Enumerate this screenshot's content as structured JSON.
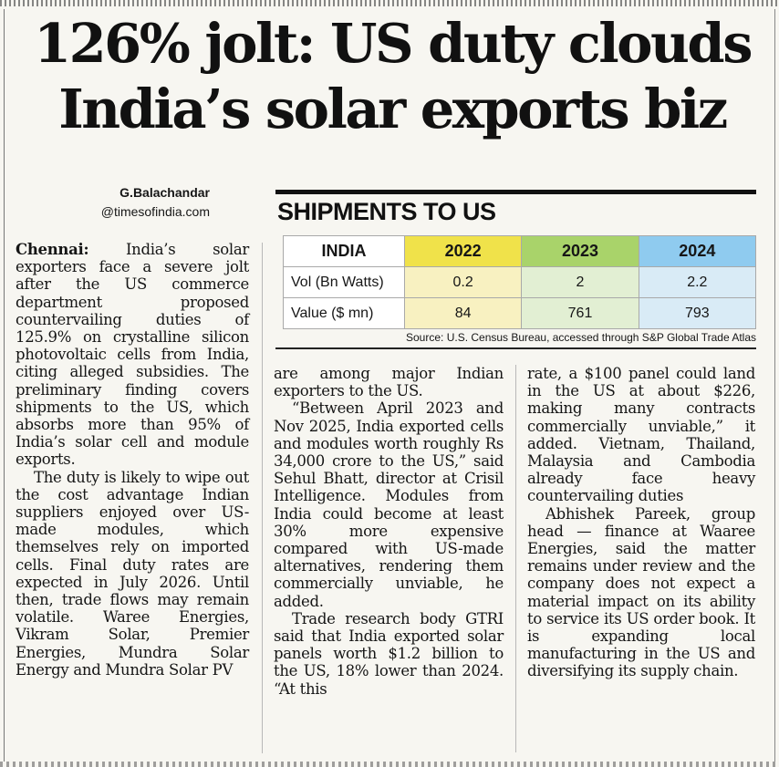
{
  "headline": {
    "line1": "126% jolt: US duty clouds",
    "line2": "India’s solar exports biz"
  },
  "byline": {
    "author": "G.Balachandar",
    "handle": "@timesofindia.com"
  },
  "chart_data": {
    "type": "table",
    "title": "SHIPMENTS TO US",
    "columns": [
      "INDIA",
      "2022",
      "2023",
      "2024"
    ],
    "rows": [
      {
        "label": "Vol (Bn Watts)",
        "values": [
          "0.2",
          "2",
          "2.2"
        ]
      },
      {
        "label": "Value ($ mn)",
        "values": [
          "84",
          "761",
          "793"
        ]
      }
    ],
    "source": "Source: U.S. Census Bureau, accessed through S&P Global Trade Atlas",
    "colors": {
      "2022": "#f0e24a",
      "2023": "#a9d36a",
      "2024": "#8fcbef"
    }
  },
  "article": {
    "dateline": "Chennai:",
    "col1": {
      "p1": " India’s solar exporters face a severe jolt after the US commerce department proposed countervailing duties of 125.9% on crystalline silicon photovoltaic cells from India, citing alleged subsidies. The preliminary finding covers shipments to the US, which absorbs more than 95% of India’s solar cell and module exports.",
      "p2": "The duty is likely to wipe out the cost advantage Indian suppliers enjoyed over US-made modules, which themselves rely on imported cells. Final duty rates are expected in July 2026. Until then, trade flows may remain volatile. Waree Energies, Vikram Solar, Premier Energies, Mundra Solar Energy and Mundra Solar PV"
    },
    "col2": {
      "p1": "are among major Indian exporters to the US.",
      "p2": "“Between April 2023 and Nov 2025, India exported cells and modules worth roughly Rs 34,000 crore to the US,” said Sehul Bhatt, director at Crisil Intelligence. Modules from India could become at least 30% more expensive compared with US-made alternatives, rendering them commercially unviable, he added.",
      "p3": "Trade research body GTRI said that India exported solar panels worth $1.2 billion to the US, 18% lower than 2024. “At this"
    },
    "col3": {
      "p1": "rate, a $100 panel could land in the US at about $226, making many contracts commercially unviable,” it added. Vietnam, Thailand, Malaysia and Cambodia already face heavy countervailing duties",
      "p2": "Abhishek Pareek, group head — finance at Waaree Energies, said the matter remains under review and the company does not expect a material impact on its ability to service its US order book. It is expanding local manufacturing in the US and diversifying its supply chain."
    }
  }
}
